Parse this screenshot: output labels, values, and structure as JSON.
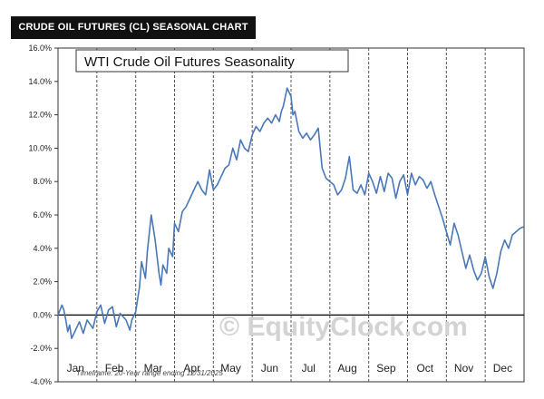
{
  "header": {
    "banner": "CRUDE OIL FUTURES (CL) SEASONAL CHART"
  },
  "chart_data": {
    "type": "line",
    "title": "WTI Crude Oil Futures Seasonality",
    "xlabel": "",
    "ylabel": "",
    "ylim": [
      -4.0,
      16.0
    ],
    "y_ticks": [
      "16.0%",
      "14.0%",
      "12.0%",
      "10.0%",
      "8.0%",
      "6.0%",
      "4.0%",
      "2.0%",
      "0.0%",
      "-2.0%",
      "-4.0%"
    ],
    "categories": [
      "Jan",
      "Feb",
      "Mar",
      "Apr",
      "May",
      "Jun",
      "Jul",
      "Aug",
      "Sep",
      "Oct",
      "Nov",
      "Dec"
    ],
    "grid": "vertical dashed month separators",
    "line_color": "#4a77b8",
    "watermark": "© EquityClock.com",
    "footnote": "Timeframe: 20-Year range ending 12/31/2025",
    "series": [
      {
        "x": [
          0.0,
          0.1,
          0.15,
          0.2,
          0.25,
          0.3,
          0.35,
          0.45,
          0.55,
          0.65,
          0.75,
          0.9,
          1.0,
          1.1,
          1.2,
          1.3,
          1.4,
          1.5,
          1.6,
          1.75,
          1.85,
          1.9,
          2.0,
          2.1,
          2.15,
          2.25,
          2.3,
          2.4,
          2.5,
          2.6,
          2.65,
          2.7,
          2.8,
          2.85,
          2.95,
          3.0,
          3.1,
          3.2,
          3.3,
          3.4,
          3.5,
          3.6,
          3.7,
          3.8,
          3.9,
          4.0,
          4.1,
          4.2,
          4.3,
          4.4,
          4.5,
          4.6,
          4.7,
          4.8,
          4.9,
          5.0,
          5.1,
          5.2,
          5.3,
          5.4,
          5.5,
          5.6,
          5.7,
          5.75,
          5.8,
          5.9,
          6.0,
          6.05,
          6.1,
          6.2,
          6.3,
          6.4,
          6.5,
          6.6,
          6.7,
          6.8,
          6.9,
          7.0,
          7.1,
          7.2,
          7.3,
          7.4,
          7.5,
          7.6,
          7.7,
          7.8,
          7.9,
          8.0,
          8.1,
          8.2,
          8.3,
          8.4,
          8.5,
          8.6,
          8.7,
          8.8,
          8.9,
          9.0,
          9.1,
          9.2,
          9.3,
          9.4,
          9.5,
          9.6,
          9.7,
          9.8,
          9.9,
          10.0,
          10.1,
          10.2,
          10.3,
          10.4,
          10.5,
          10.6,
          10.7,
          10.8,
          10.9,
          11.0,
          11.1,
          11.2,
          11.3,
          11.4,
          11.5,
          11.6,
          11.7,
          11.8,
          11.9,
          12.0
        ],
        "y": [
          0.0,
          0.6,
          0.3,
          -0.3,
          -1.0,
          -0.6,
          -1.4,
          -0.9,
          -0.4,
          -1.1,
          -0.3,
          -0.8,
          0.2,
          0.6,
          -0.5,
          0.3,
          0.5,
          -0.7,
          0.1,
          -0.3,
          -0.9,
          -0.3,
          0.2,
          1.7,
          3.2,
          2.2,
          3.8,
          6.0,
          4.5,
          2.5,
          1.8,
          3.0,
          2.5,
          4.0,
          3.5,
          5.5,
          5.0,
          6.2,
          6.5,
          7.0,
          7.5,
          8.0,
          7.5,
          7.2,
          8.7,
          7.5,
          7.8,
          8.3,
          8.8,
          9.0,
          10.0,
          9.3,
          10.5,
          10.0,
          9.8,
          10.8,
          11.3,
          11.0,
          11.5,
          11.8,
          11.5,
          12.0,
          11.6,
          12.2,
          12.5,
          13.6,
          13.1,
          12.0,
          12.2,
          11.0,
          10.6,
          10.9,
          10.5,
          10.8,
          11.2,
          8.8,
          8.2,
          8.0,
          7.8,
          7.2,
          7.5,
          8.2,
          9.5,
          7.5,
          7.3,
          7.8,
          7.2,
          8.5,
          8.0,
          7.3,
          8.3,
          7.4,
          8.5,
          8.2,
          7.0,
          8.0,
          8.4,
          7.2,
          8.5,
          7.8,
          8.3,
          8.1,
          7.6,
          8.0,
          7.2,
          6.5,
          5.8,
          5.0,
          4.2,
          5.5,
          4.8,
          3.8,
          2.8,
          3.6,
          2.7,
          2.1,
          2.5,
          3.5,
          2.3,
          1.6,
          2.5,
          3.8,
          4.5,
          4.0,
          4.8,
          5.0,
          5.2,
          5.3
        ]
      }
    ]
  }
}
